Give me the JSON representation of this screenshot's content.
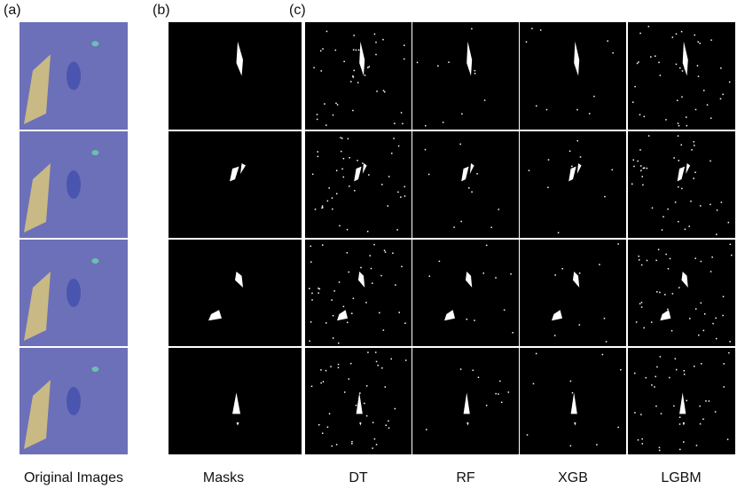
{
  "panel_labels": [
    "(a)",
    "(b)",
    "(c)"
  ],
  "columns": [
    "Original Images",
    "Masks",
    "DT",
    "RF",
    "XGB",
    "LGBM"
  ]
}
